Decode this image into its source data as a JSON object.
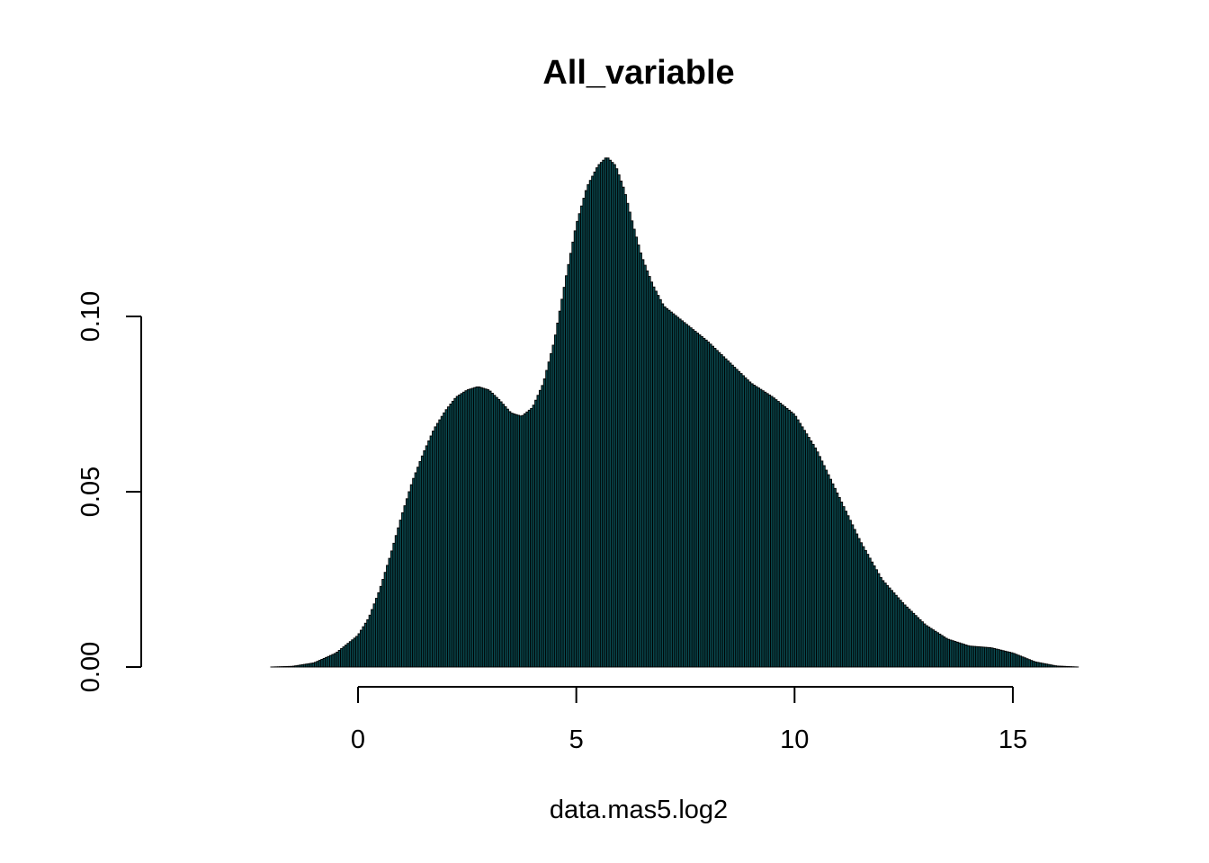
{
  "chart_data": {
    "type": "bar",
    "title": "All_variable",
    "xlabel": "data.mas5.log2",
    "ylabel": "",
    "xlim": [
      -4.4,
      17.0
    ],
    "ylim": [
      0,
      0.15
    ],
    "x_ticks": [
      0,
      5,
      10,
      15
    ],
    "x_tick_labels": [
      "0",
      "5",
      "10",
      "15"
    ],
    "y_ticks": [
      0.0,
      0.05,
      0.1
    ],
    "y_tick_labels": [
      "0.00",
      "0.05",
      "0.10"
    ],
    "grid": false,
    "bar_fill_color": "#0a4a50",
    "bar_border_color": "#000000",
    "bin_width": 0.05,
    "density_profile": {
      "x": [
        -4.1,
        -2.0,
        -1.5,
        -1.0,
        -0.5,
        0.0,
        0.25,
        0.5,
        0.75,
        1.0,
        1.25,
        1.5,
        1.75,
        2.0,
        2.25,
        2.5,
        2.75,
        3.0,
        3.25,
        3.5,
        3.75,
        4.0,
        4.25,
        4.5,
        4.75,
        5.0,
        5.25,
        5.5,
        5.7,
        5.9,
        6.1,
        6.3,
        6.5,
        6.75,
        7.0,
        7.5,
        8.0,
        8.5,
        9.0,
        9.5,
        10.0,
        10.5,
        11.0,
        11.5,
        12.0,
        12.5,
        13.0,
        13.5,
        14.0,
        14.5,
        15.0,
        15.5,
        16.0,
        16.5,
        17.0
      ],
      "y": [
        0.0,
        0.0,
        0.0002,
        0.0012,
        0.004,
        0.009,
        0.014,
        0.022,
        0.032,
        0.043,
        0.053,
        0.061,
        0.068,
        0.073,
        0.077,
        0.079,
        0.08,
        0.079,
        0.076,
        0.0725,
        0.0715,
        0.074,
        0.081,
        0.093,
        0.11,
        0.126,
        0.137,
        0.143,
        0.1455,
        0.143,
        0.136,
        0.126,
        0.117,
        0.109,
        0.103,
        0.098,
        0.093,
        0.087,
        0.081,
        0.077,
        0.072,
        0.062,
        0.049,
        0.036,
        0.025,
        0.018,
        0.012,
        0.008,
        0.006,
        0.0055,
        0.004,
        0.0015,
        0.0003,
        0.0,
        0.0
      ]
    }
  }
}
